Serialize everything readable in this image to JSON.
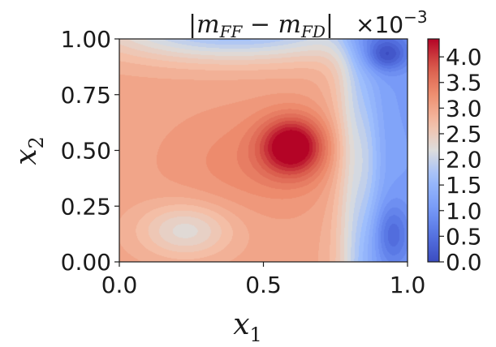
{
  "chart_data": {
    "type": "heatmap",
    "title": "|m_FF − m_FD|",
    "title_parts": {
      "bar_left": "|",
      "m1": "m",
      "sub1": "FF",
      "minus": " − ",
      "m2": "m",
      "sub2": "FD",
      "bar_right": "|"
    },
    "xlabel": {
      "main": "x",
      "sub": "1"
    },
    "ylabel": {
      "main": "x",
      "sub": "2"
    },
    "xlim": [
      0,
      1
    ],
    "ylim": [
      0,
      1
    ],
    "x_ticks": [
      0.0,
      0.5,
      1.0
    ],
    "x_tick_labels": [
      "0.0",
      "0.5",
      "1.0"
    ],
    "y_ticks": [
      0.0,
      0.25,
      0.5,
      0.75,
      1.0
    ],
    "y_tick_labels": [
      "0.00",
      "0.25",
      "0.50",
      "0.75",
      "1.00"
    ],
    "colormap": "coolwarm",
    "colorbar": {
      "range": [
        0.0,
        4.35
      ],
      "multiplier_base": "×10",
      "multiplier_exp": "−3",
      "ticks": [
        0.0,
        0.5,
        1.0,
        1.5,
        2.0,
        2.5,
        3.0,
        3.5,
        4.0
      ],
      "tick_labels": [
        "0.0",
        "0.5",
        "1.0",
        "1.5",
        "2.0",
        "2.5",
        "3.0",
        "3.5",
        "4.0"
      ]
    },
    "field_features": [
      {
        "kind": "peak",
        "x": 0.6,
        "y": 0.52,
        "value": 4.35
      },
      {
        "kind": "local_min",
        "x": 0.23,
        "y": 0.15,
        "value": 2.1
      },
      {
        "kind": "low_band_top",
        "x_range": [
          0.0,
          0.75
        ],
        "y": 1.0,
        "value": 1.6
      },
      {
        "kind": "valley",
        "x": 0.93,
        "y": 0.93,
        "value": 0.3
      },
      {
        "kind": "valley",
        "x": 0.95,
        "y": 0.12,
        "value": 0.3
      }
    ]
  }
}
